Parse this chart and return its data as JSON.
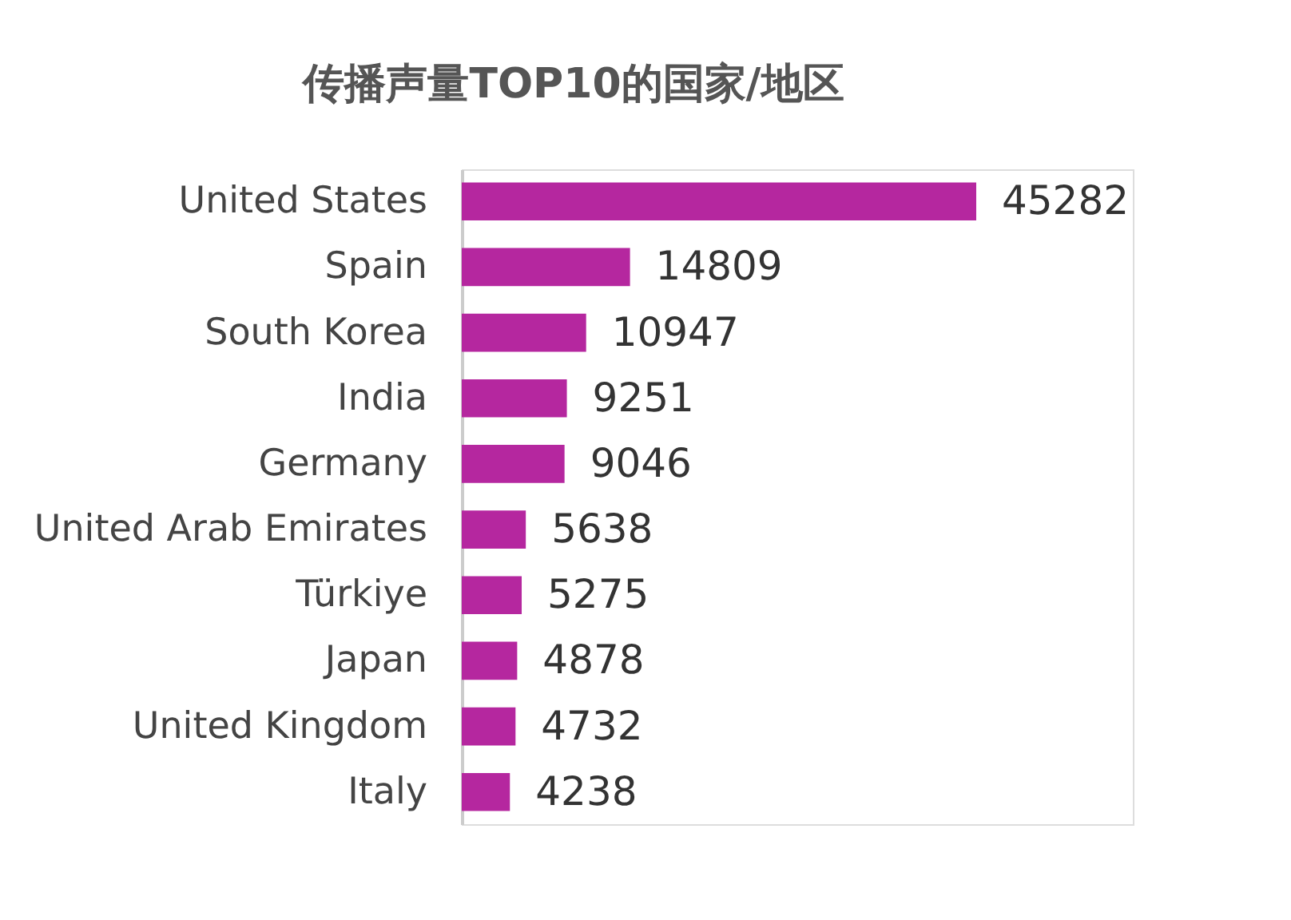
{
  "chart_data": {
    "type": "bar",
    "orientation": "horizontal",
    "title": "传播声量TOP10的国家/地区",
    "categories": [
      "United States",
      "Spain",
      "South Korea",
      "India",
      "Germany",
      "United Arab Emirates",
      "Türkiye",
      "Japan",
      "United Kingdom",
      "Italy"
    ],
    "values": [
      45282,
      14809,
      10947,
      9251,
      9046,
      5638,
      5275,
      4878,
      4732,
      4238
    ],
    "color": "#b5279f",
    "data_labels": true
  }
}
